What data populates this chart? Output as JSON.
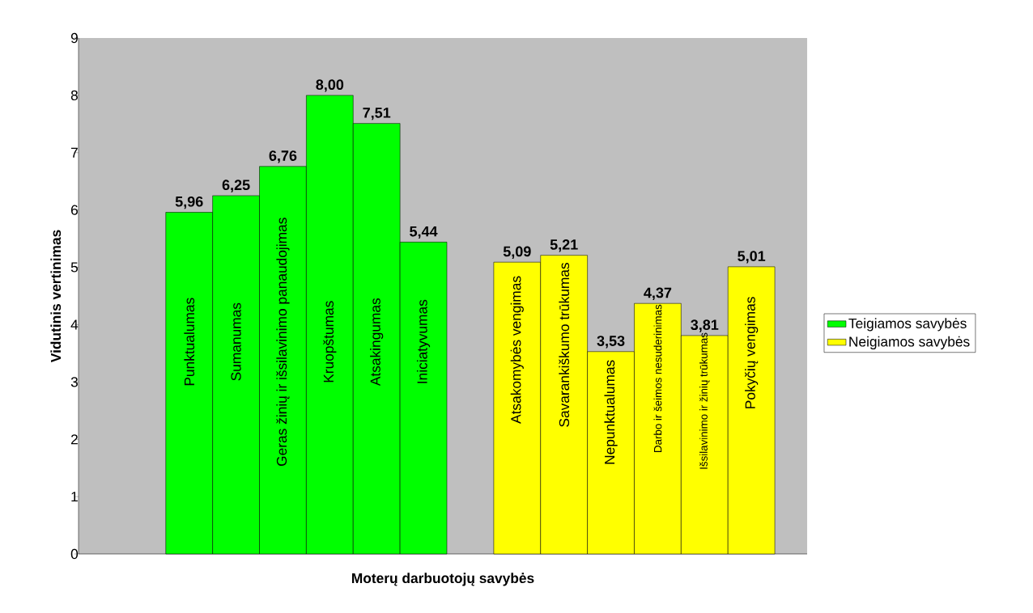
{
  "chart_data": {
    "type": "bar",
    "xlabel": "Moterų darbuotojų savybės",
    "ylabel": "Vidutinis vertinimas",
    "categories": [
      "Punktualumas",
      "Sumanumas",
      "Geras žinių ir išsilavinimo panaudojimas",
      "Kruopštumas",
      "Atsakingumas",
      "Iniciatyvumas",
      null,
      "Atsakomybės vengimas",
      "Savarankiškumo trūkumas",
      "Nepunktualumas",
      "Darbo ir šeimos nesuderinimas",
      "Išsilavinimo ir žinių trūkumas",
      "Pokyčių vengimas"
    ],
    "series": [
      {
        "name": "Teigiamos savybės",
        "color": "#00ff00",
        "values": [
          5.96,
          6.25,
          6.76,
          8.0,
          7.51,
          5.44,
          null,
          null,
          null,
          null,
          null,
          null,
          null
        ],
        "value_labels": [
          "5,96",
          "6,25",
          "6,76",
          "8,00",
          "7,51",
          "5,44",
          null,
          null,
          null,
          null,
          null,
          null,
          null
        ]
      },
      {
        "name": "Neigiamos savybės",
        "color": "#ffff00",
        "values": [
          null,
          null,
          null,
          null,
          null,
          null,
          null,
          5.09,
          5.21,
          3.53,
          4.37,
          3.81,
          5.01
        ],
        "value_labels": [
          null,
          null,
          null,
          null,
          null,
          null,
          null,
          "5,09",
          "5,21",
          "3,53",
          "4,37",
          "3,81",
          "5,01"
        ]
      }
    ],
    "ylim": [
      0,
      9
    ],
    "yticks": [
      0,
      1,
      2,
      3,
      4,
      5,
      6,
      7,
      8,
      9
    ],
    "grid": false,
    "legend": "right"
  }
}
